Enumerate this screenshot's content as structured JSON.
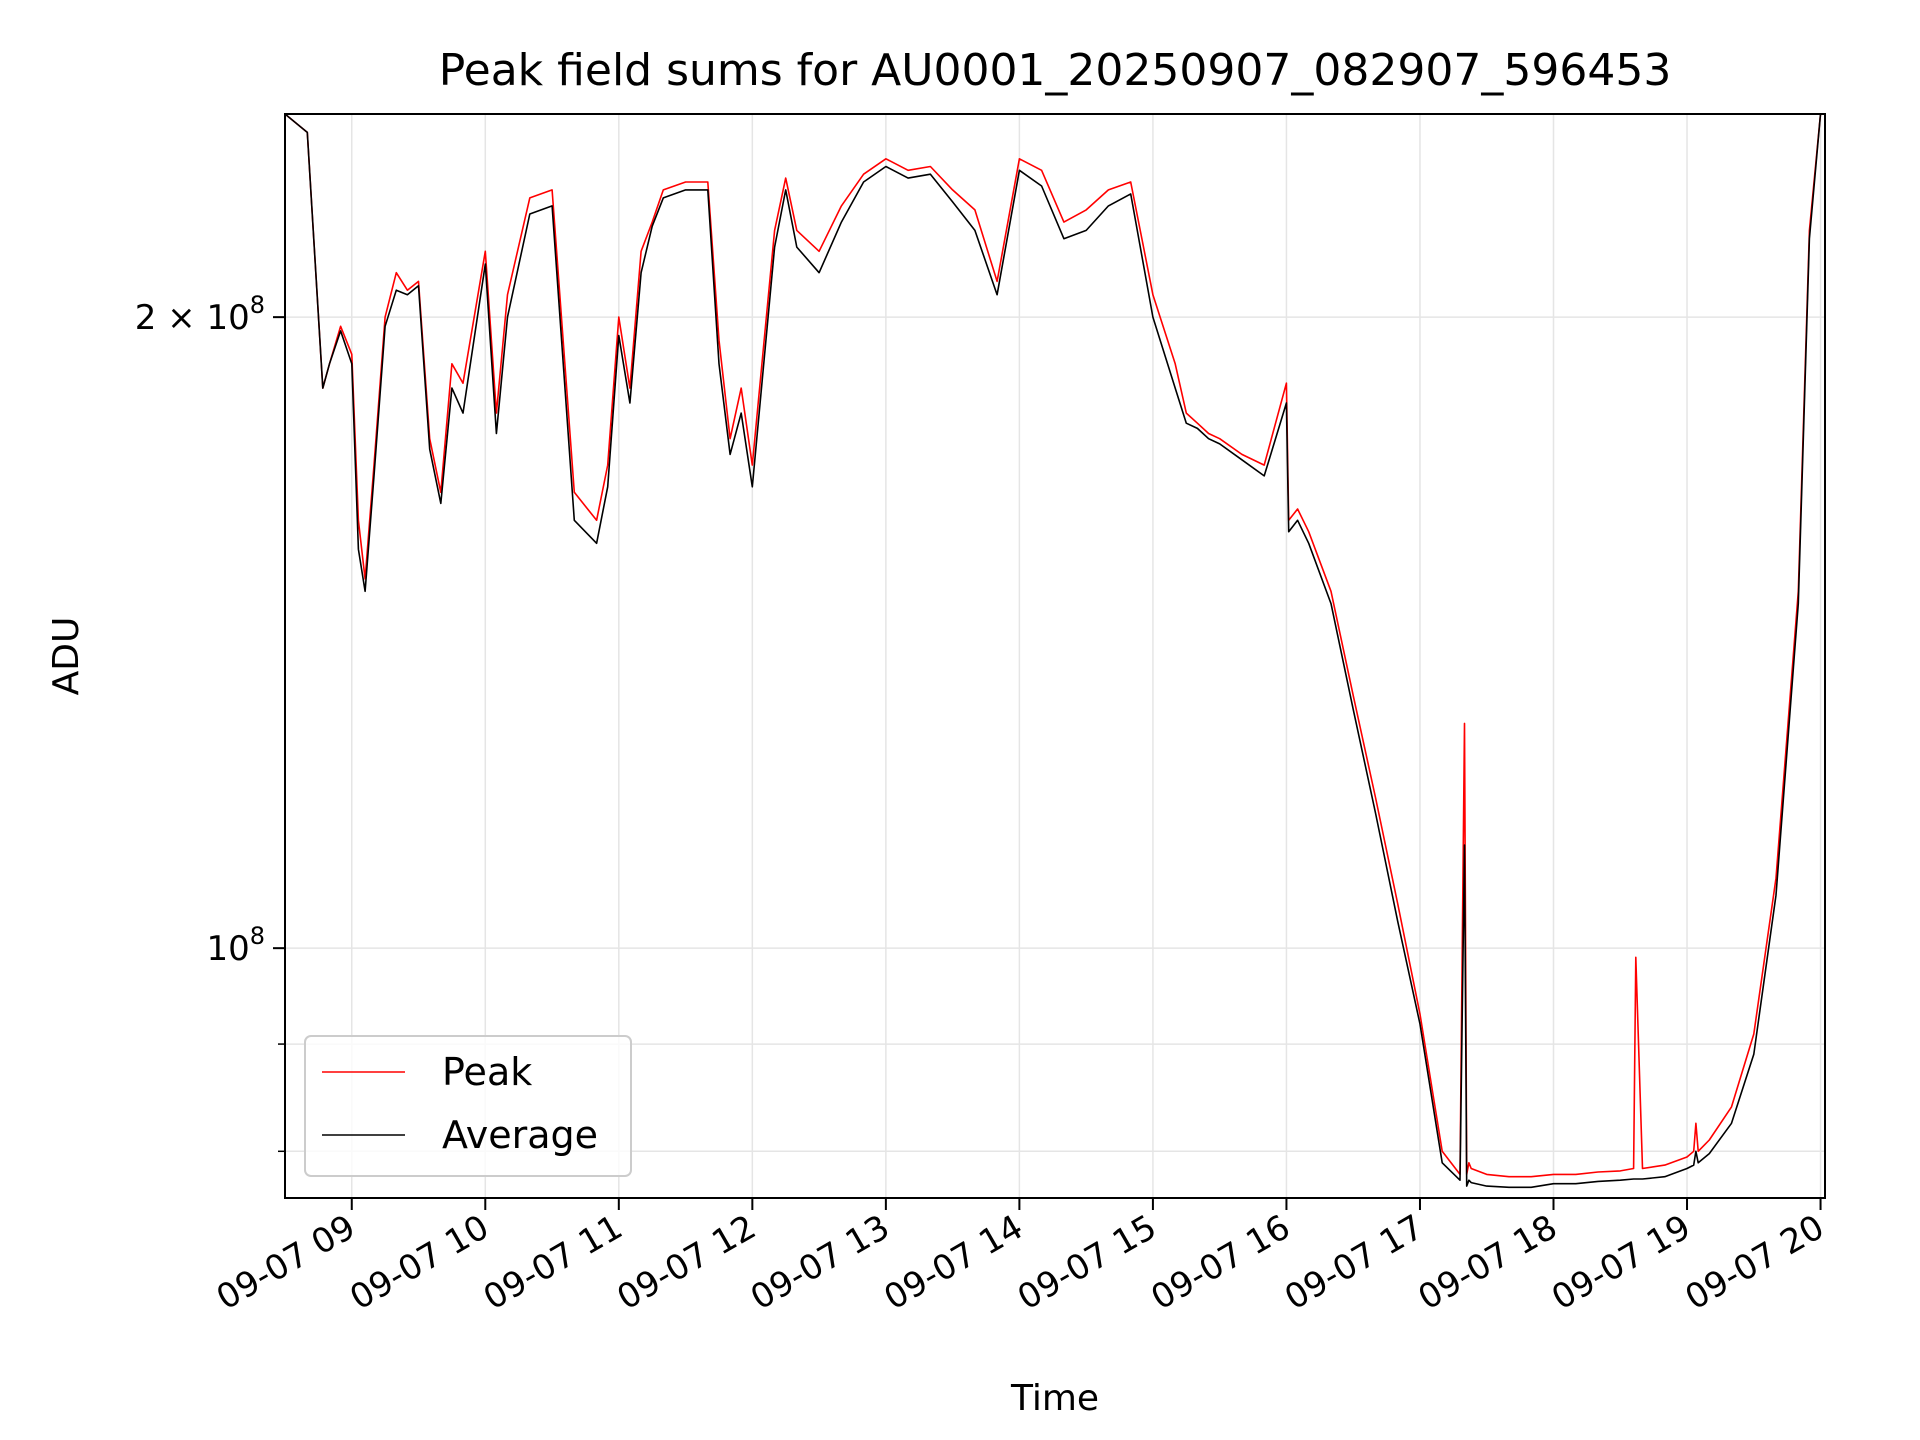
{
  "chart_data": {
    "type": "line",
    "title": "Peak field sums for AU0001_20250907_082907_596453",
    "xlabel": "Time",
    "ylabel": "ADU",
    "yscale": "log",
    "ylim": [
      76000000,
      250000000
    ],
    "xlim": [
      "09-07 08:30",
      "09-07 20:02"
    ],
    "grid": true,
    "legend_position": "lower-left",
    "x_ticks": [
      "09-07 09",
      "09-07 10",
      "09-07 11",
      "09-07 12",
      "09-07 13",
      "09-07 14",
      "09-07 15",
      "09-07 16",
      "09-07 17",
      "09-07 18",
      "09-07 19",
      "09-07 20"
    ],
    "y_ticks": [
      {
        "value": 200000000,
        "label_base": "2 × 10",
        "label_exp": "8"
      },
      {
        "value": 100000000,
        "label_base": "10",
        "label_exp": "8"
      }
    ],
    "x": [
      "09-07 08:30",
      "09-07 08:40",
      "09-07 08:47",
      "09-07 08:50",
      "09-07 08:55",
      "09-07 09:00",
      "09-07 09:03",
      "09-07 09:06",
      "09-07 09:10",
      "09-07 09:15",
      "09-07 09:20",
      "09-07 09:25",
      "09-07 09:30",
      "09-07 09:35",
      "09-07 09:40",
      "09-07 09:45",
      "09-07 09:50",
      "09-07 10:00",
      "09-07 10:05",
      "09-07 10:10",
      "09-07 10:20",
      "09-07 10:30",
      "09-07 10:40",
      "09-07 10:50",
      "09-07 10:55",
      "09-07 11:00",
      "09-07 11:05",
      "09-07 11:10",
      "09-07 11:15",
      "09-07 11:20",
      "09-07 11:30",
      "09-07 11:40",
      "09-07 11:45",
      "09-07 11:50",
      "09-07 11:55",
      "09-07 12:00",
      "09-07 12:10",
      "09-07 12:15",
      "09-07 12:20",
      "09-07 12:30",
      "09-07 12:40",
      "09-07 12:50",
      "09-07 13:00",
      "09-07 13:10",
      "09-07 13:20",
      "09-07 13:30",
      "09-07 13:40",
      "09-07 13:50",
      "09-07 14:00",
      "09-07 14:10",
      "09-07 14:20",
      "09-07 14:30",
      "09-07 14:40",
      "09-07 14:50",
      "09-07 15:00",
      "09-07 15:10",
      "09-07 15:15",
      "09-07 15:20",
      "09-07 15:25",
      "09-07 15:30",
      "09-07 15:40",
      "09-07 15:50",
      "09-07 16:00",
      "09-07 16:01",
      "09-07 16:05",
      "09-07 16:10",
      "09-07 16:20",
      "09-07 16:30",
      "09-07 16:40",
      "09-07 16:50",
      "09-07 17:00",
      "09-07 17:10",
      "09-07 17:18",
      "09-07 17:20",
      "09-07 17:21",
      "09-07 17:22",
      "09-07 17:23",
      "09-07 17:30",
      "09-07 17:40",
      "09-07 17:50",
      "09-07 18:00",
      "09-07 18:10",
      "09-07 18:20",
      "09-07 18:30",
      "09-07 18:36",
      "09-07 18:37",
      "09-07 18:40",
      "09-07 18:50",
      "09-07 19:00",
      "09-07 19:03",
      "09-07 19:04",
      "09-07 19:05",
      "09-07 19:10",
      "09-07 19:20",
      "09-07 19:30",
      "09-07 19:40",
      "09-07 19:50",
      "09-07 19:55",
      "09-07 20:00"
    ],
    "series": [
      {
        "name": "Peak",
        "color": "#ff0000",
        "values": [
          250000000,
          245000000,
          185000000,
          190000000,
          198000000,
          192000000,
          160000000,
          150000000,
          170000000,
          200000000,
          210000000,
          206000000,
          208000000,
          175000000,
          165000000,
          190000000,
          186000000,
          215000000,
          180000000,
          205000000,
          228000000,
          230000000,
          165000000,
          160000000,
          170000000,
          200000000,
          185000000,
          215000000,
          222000000,
          230000000,
          232000000,
          232000000,
          195000000,
          175000000,
          185000000,
          170000000,
          220000000,
          233000000,
          220000000,
          215000000,
          226000000,
          234000000,
          238000000,
          235000000,
          236000000,
          230000000,
          225000000,
          208000000,
          238000000,
          235000000,
          222000000,
          225000000,
          230000000,
          232000000,
          205000000,
          190000000,
          180000000,
          178000000,
          176000000,
          175000000,
          172000000,
          170000000,
          186000000,
          160000000,
          162000000,
          158000000,
          148000000,
          132000000,
          118000000,
          105000000,
          93000000,
          80000000,
          78000000,
          128000000,
          78000000,
          79000000,
          78500000,
          78000000,
          77800000,
          77800000,
          78000000,
          78000000,
          78200000,
          78300000,
          78500000,
          99000000,
          78500000,
          78800000,
          79500000,
          80000000,
          82500000,
          80000000,
          81000000,
          84000000,
          91000000,
          108000000,
          148000000,
          220000000,
          250000000
        ]
      },
      {
        "name": "Average",
        "color": "#000000",
        "values": [
          250000000,
          245000000,
          185000000,
          190000000,
          197000000,
          190000000,
          155000000,
          148000000,
          168000000,
          198000000,
          206000000,
          205000000,
          207000000,
          173000000,
          163000000,
          185000000,
          180000000,
          212000000,
          176000000,
          200000000,
          224000000,
          226000000,
          160000000,
          156000000,
          166000000,
          196000000,
          182000000,
          210000000,
          221000000,
          228000000,
          230000000,
          230000000,
          190000000,
          172000000,
          180000000,
          166000000,
          216000000,
          230000000,
          216000000,
          210000000,
          222000000,
          232000000,
          236000000,
          233000000,
          234000000,
          227000000,
          220000000,
          205000000,
          235000000,
          231000000,
          218000000,
          220000000,
          226000000,
          229000000,
          200000000,
          185000000,
          178000000,
          177000000,
          175000000,
          174000000,
          171000000,
          168000000,
          182000000,
          158000000,
          160000000,
          156000000,
          146000000,
          130000000,
          116000000,
          103000000,
          92000000,
          79000000,
          77500000,
          112000000,
          77000000,
          77500000,
          77300000,
          77000000,
          76900000,
          76900000,
          77200000,
          77200000,
          77400000,
          77500000,
          77600000,
          77600000,
          77600000,
          77800000,
          78500000,
          78800000,
          80000000,
          79000000,
          79800000,
          82500000,
          89000000,
          106000000,
          146000000,
          218000000,
          250000000
        ]
      }
    ]
  }
}
